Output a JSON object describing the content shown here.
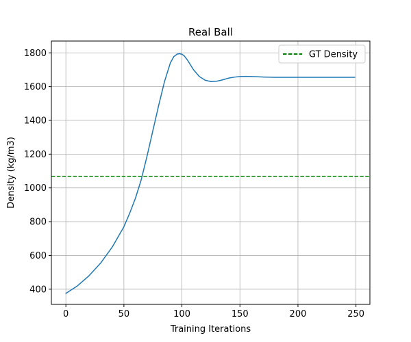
{
  "chart_data": {
    "type": "line",
    "title": "Real Ball",
    "xlabel": "Training Iterations",
    "ylabel": "Density (kg/m3)",
    "xlim": [
      -12.5,
      262
    ],
    "ylim": [
      310,
      1870
    ],
    "xticks": [
      0,
      50,
      100,
      150,
      200,
      250
    ],
    "yticks": [
      400,
      600,
      800,
      1000,
      1200,
      1400,
      1600,
      1800
    ],
    "grid": true,
    "legend_position": "upper-right",
    "series": [
      {
        "color": "#1f77b4",
        "style": "solid",
        "x": [
          0,
          10,
          20,
          30,
          40,
          50,
          55,
          60,
          65,
          70,
          75,
          80,
          85,
          90,
          93,
          96,
          98,
          100,
          102,
          105,
          110,
          115,
          120,
          125,
          130,
          135,
          140,
          145,
          150,
          155,
          160,
          170,
          180,
          190,
          200,
          210,
          220,
          230,
          240,
          249
        ],
        "y": [
          375,
          420,
          480,
          555,
          650,
          770,
          850,
          940,
          1050,
          1190,
          1340,
          1490,
          1630,
          1740,
          1778,
          1793,
          1795,
          1792,
          1782,
          1755,
          1700,
          1660,
          1638,
          1630,
          1632,
          1640,
          1650,
          1656,
          1660,
          1661,
          1660,
          1657,
          1655,
          1655,
          1655,
          1655,
          1655,
          1655,
          1655,
          1655
        ]
      }
    ],
    "reference_lines": [
      {
        "name": "GT Density",
        "orientation": "horizontal",
        "y": 1068,
        "color": "#008000",
        "style": "dashed"
      }
    ]
  }
}
